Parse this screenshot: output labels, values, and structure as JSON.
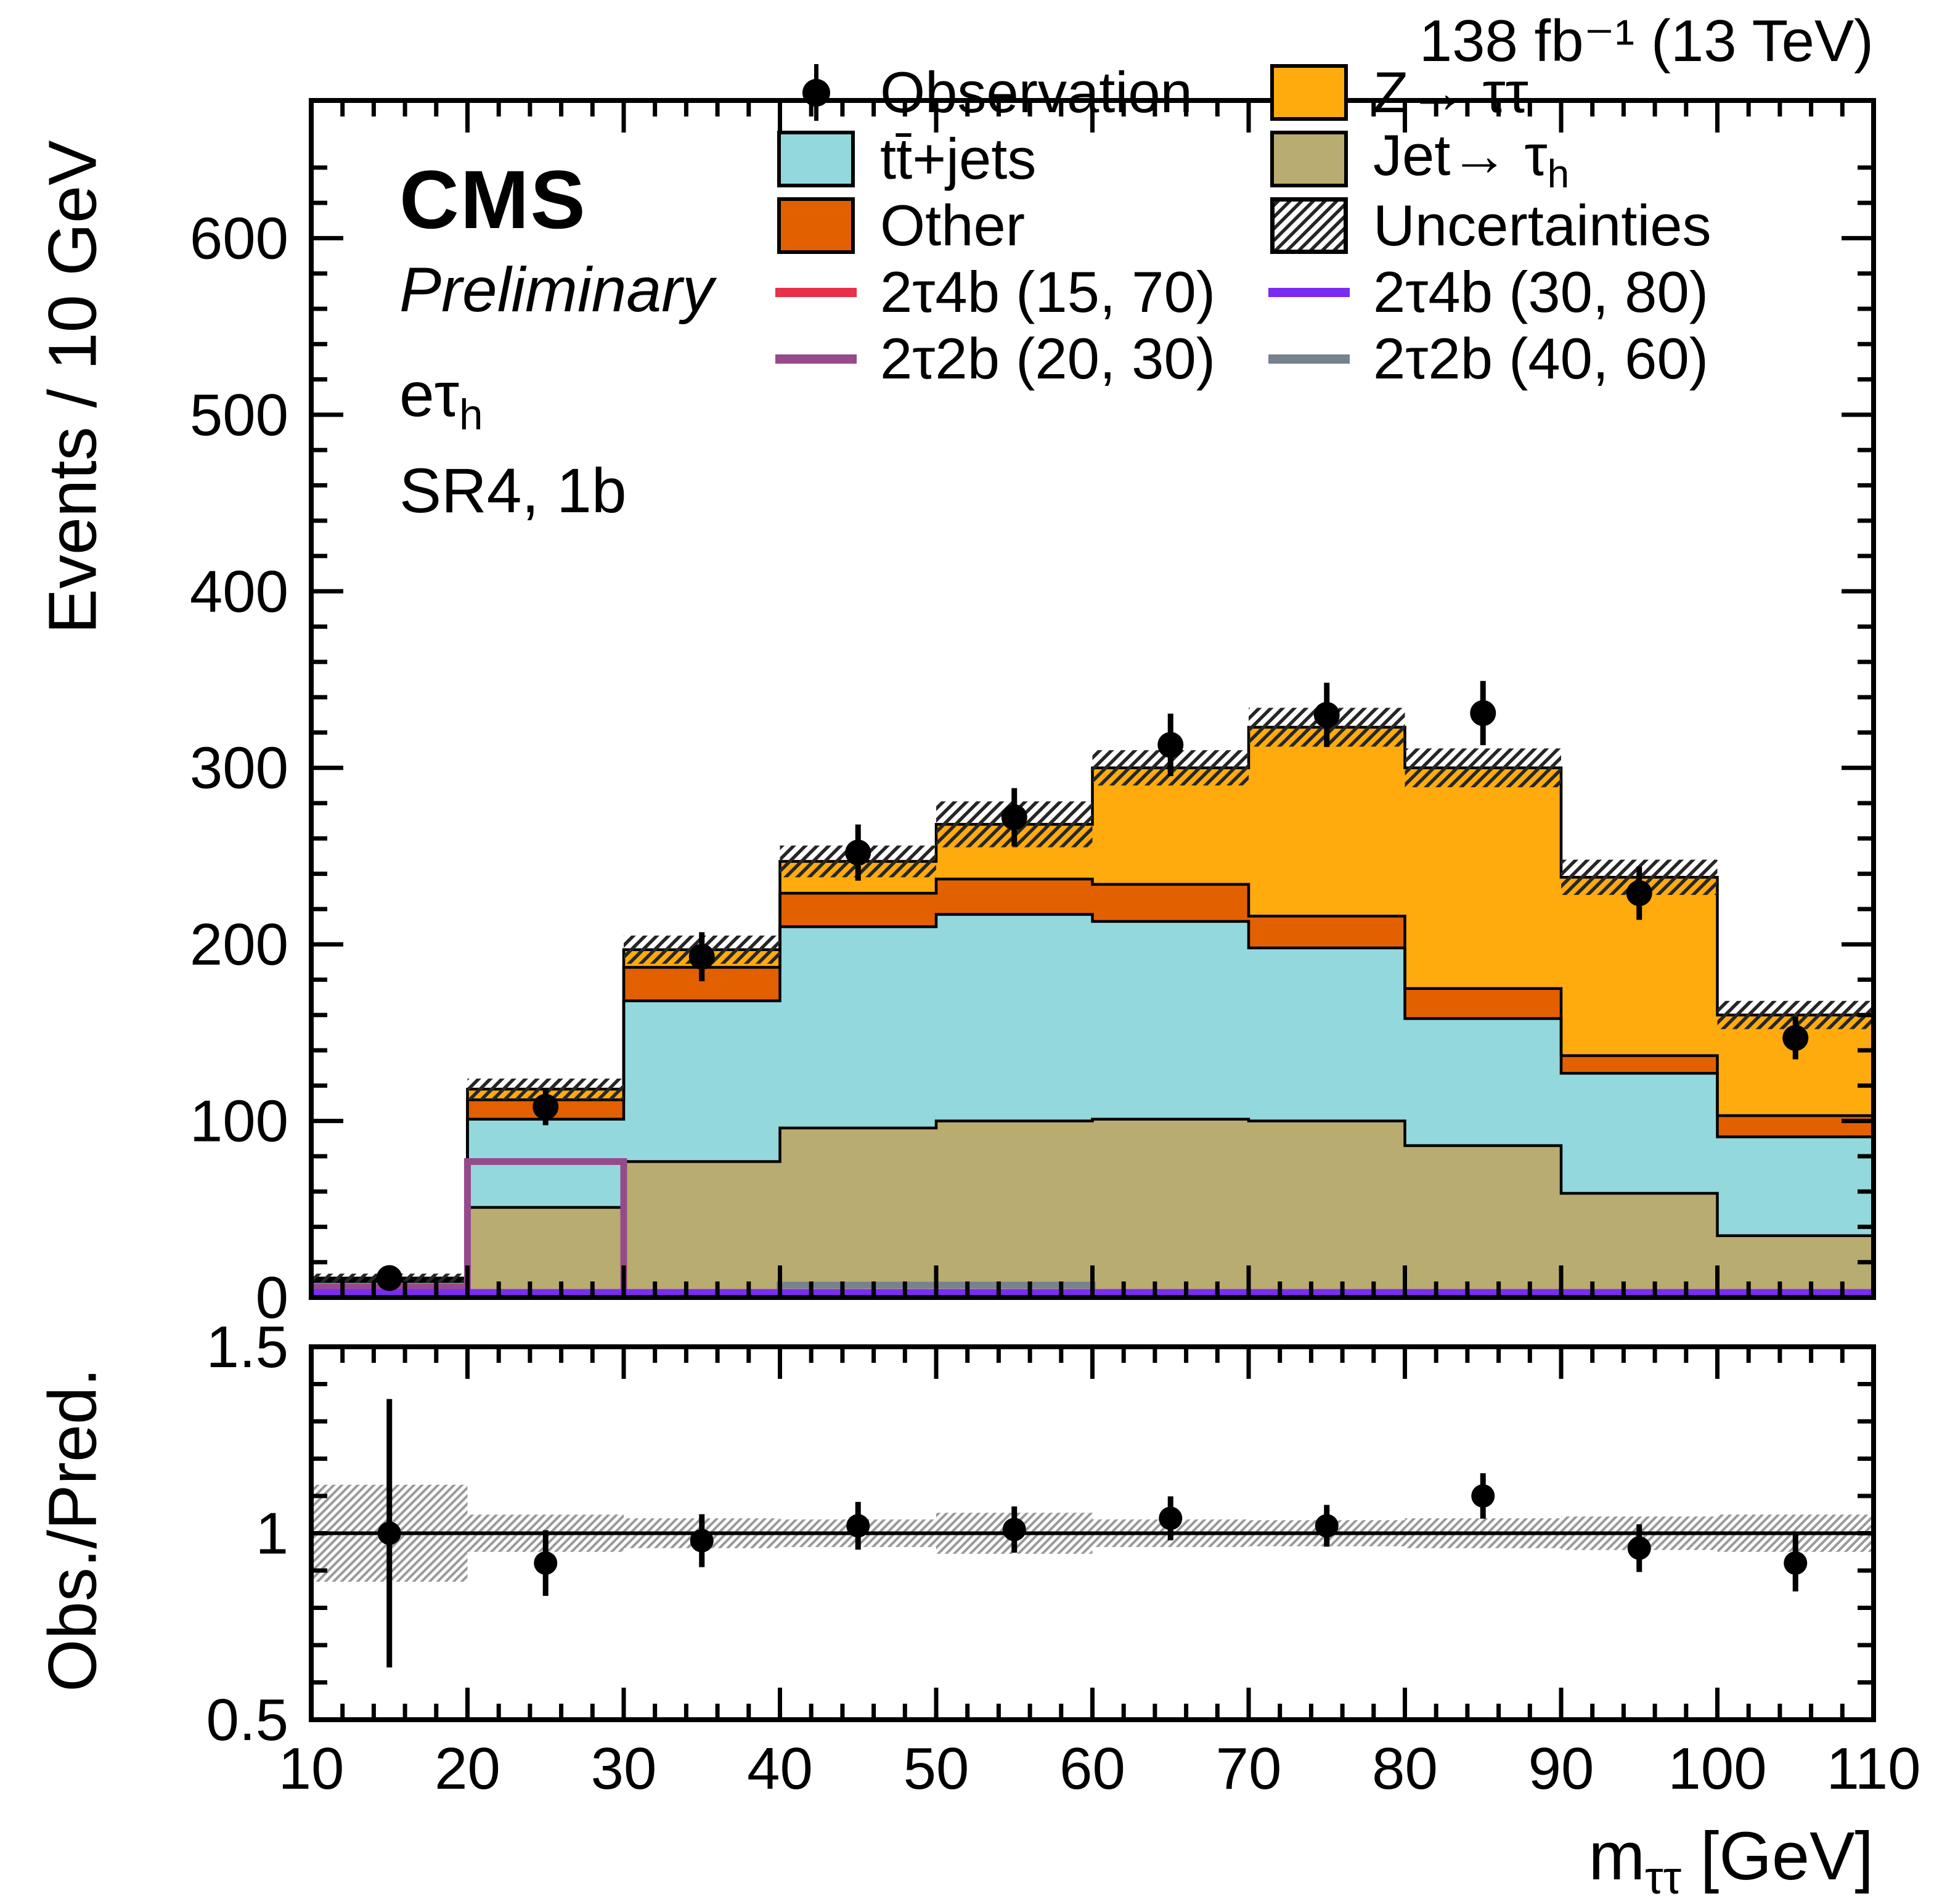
{
  "header": {
    "lumi": "138 fb⁻¹ (13 TeV)"
  },
  "annotations": {
    "experiment": "CMS",
    "status": "Preliminary",
    "channel_main": "eτ",
    "channel_sub": "h",
    "region": "SR4, 1b"
  },
  "axis_titles": {
    "y_main": "Events / 10 GeV",
    "y_ratio": "Obs./Pred.",
    "x_main": "m",
    "x_sub": "ττ",
    "x_suffix": " [GeV]"
  },
  "legend": {
    "col1": [
      {
        "type": "obs",
        "label": "Observation"
      },
      {
        "type": "box",
        "label": "tt̄+jets",
        "color": "#93d8dc"
      },
      {
        "type": "box",
        "label": "Other",
        "color": "#e36000"
      },
      {
        "type": "line",
        "label": "2τ4b (15, 70)",
        "color": "#e8304a"
      },
      {
        "type": "line",
        "label": "2τ2b (20, 30)",
        "color": "#964a8b"
      }
    ],
    "col2": [
      {
        "type": "box",
        "label": "Z→ ττ",
        "color": "#ffab0e"
      },
      {
        "type": "box",
        "label_main": "Jet→ τ",
        "label_sub": "h",
        "color": "#b9ac70"
      },
      {
        "type": "hatch",
        "label": "Uncertainties"
      },
      {
        "type": "line",
        "label": "2τ4b (30, 80)",
        "color": "#7c2bf2"
      },
      {
        "type": "line",
        "label": "2τ2b (40, 60)",
        "color": "#76828e"
      }
    ]
  },
  "chart_data": {
    "type": "bar",
    "subtype": "stacked-histogram-with-ratio",
    "title": "",
    "xlabel": "m_tautau [GeV]",
    "ylabel": "Events / 10 GeV",
    "x_axis": {
      "min": 10,
      "max": 110,
      "bin_width": 10,
      "tick_labels": [
        10,
        20,
        30,
        40,
        50,
        60,
        70,
        80,
        90,
        100,
        110
      ],
      "minor_step": 2
    },
    "y_main": {
      "min": 0,
      "max": 678,
      "tick_values": [
        0,
        100,
        200,
        300,
        400,
        500,
        600
      ],
      "major_step": 100,
      "minor_step": 20,
      "grid": false
    },
    "y_ratio": {
      "min": 0.5,
      "max": 1.5,
      "tick_values": [
        0.5,
        1,
        1.5
      ],
      "tick_labels": [
        "0.5",
        "1",
        "1.5"
      ],
      "minor_step": 0.1
    },
    "bin_edges": [
      10,
      20,
      30,
      40,
      50,
      60,
      70,
      80,
      90,
      100,
      110
    ],
    "series": [
      {
        "id": "jet-tauh",
        "label": "Jet→ τh",
        "color": "#b9ac70",
        "values": [
          3,
          51,
          77,
          96,
          100,
          101,
          100,
          86,
          59,
          35
        ]
      },
      {
        "id": "ttjets",
        "label": "tt̄+jets",
        "color": "#93d8dc",
        "values": [
          6,
          50,
          91,
          114,
          117,
          112,
          98,
          72,
          68,
          56
        ]
      },
      {
        "id": "other",
        "label": "Other",
        "color": "#e36000",
        "values": [
          1,
          11,
          19,
          19,
          20,
          21,
          18,
          17,
          10,
          12
        ]
      },
      {
        "id": "ztautau",
        "label": "Z→ ττ",
        "color": "#ffab0e",
        "values": [
          1,
          6,
          10,
          18,
          31,
          66,
          107,
          125,
          101,
          57
        ]
      }
    ],
    "total": [
      11,
      118,
      197,
      247,
      268,
      300,
      323,
      300,
      238,
      160
    ],
    "uncertainty": [
      2.5,
      6,
      8,
      9,
      13,
      10,
      11,
      11,
      10,
      8
    ],
    "observation": {
      "label": "Observation",
      "values": [
        11,
        108,
        193,
        252,
        272,
        313,
        330,
        331,
        229,
        147
      ],
      "errors": [
        3.3,
        10.4,
        13.9,
        15.9,
        16.5,
        17.7,
        18.2,
        18.2,
        15.1,
        12.1
      ]
    },
    "signals": [
      {
        "id": "2t4b-15-70",
        "label": "2τ4b (15, 70)",
        "color": "#e8304a",
        "lw": 7,
        "values": [
          1.5,
          1.5,
          1.5,
          1.5,
          1.5,
          1.5,
          1.5,
          1.5,
          1.5,
          1.5
        ]
      },
      {
        "id": "2t2b-40-60",
        "label": "2τ2b (40, 60)",
        "color": "#76828e",
        "lw": 11,
        "values": [
          1.5,
          1.5,
          1.5,
          7,
          7,
          1.5,
          1.5,
          1.5,
          1.5,
          1.5
        ]
      },
      {
        "id": "2t2b-20-30",
        "label": "2τ2b (20, 30)",
        "color": "#964a8b",
        "lw": 11,
        "values": [
          6,
          77,
          1.5,
          1.5,
          1.5,
          1.5,
          1.5,
          1.5,
          1.5,
          1.5
        ]
      },
      {
        "id": "2t4b-30-80",
        "label": "2τ4b (30, 80)",
        "color": "#7c2bf2",
        "lw": 13,
        "values": [
          2.5,
          2.5,
          2.5,
          2.5,
          2.5,
          2.5,
          2.5,
          2.5,
          2.5,
          2.5
        ]
      }
    ],
    "ratio": {
      "values": [
        1.0,
        0.92,
        0.98,
        1.02,
        1.01,
        1.04,
        1.02,
        1.1,
        0.96,
        0.92
      ],
      "errors": [
        0.36,
        0.088,
        0.071,
        0.064,
        0.062,
        0.059,
        0.056,
        0.061,
        0.064,
        0.076
      ],
      "band": [
        0.13,
        0.05,
        0.04,
        0.037,
        0.055,
        0.037,
        0.035,
        0.04,
        0.045,
        0.05
      ],
      "reference_line": 1
    },
    "colors": {
      "frame": "#000000",
      "hatch_main": "#262626",
      "hatch_ratio": "#999999",
      "observation": "#000000"
    }
  }
}
